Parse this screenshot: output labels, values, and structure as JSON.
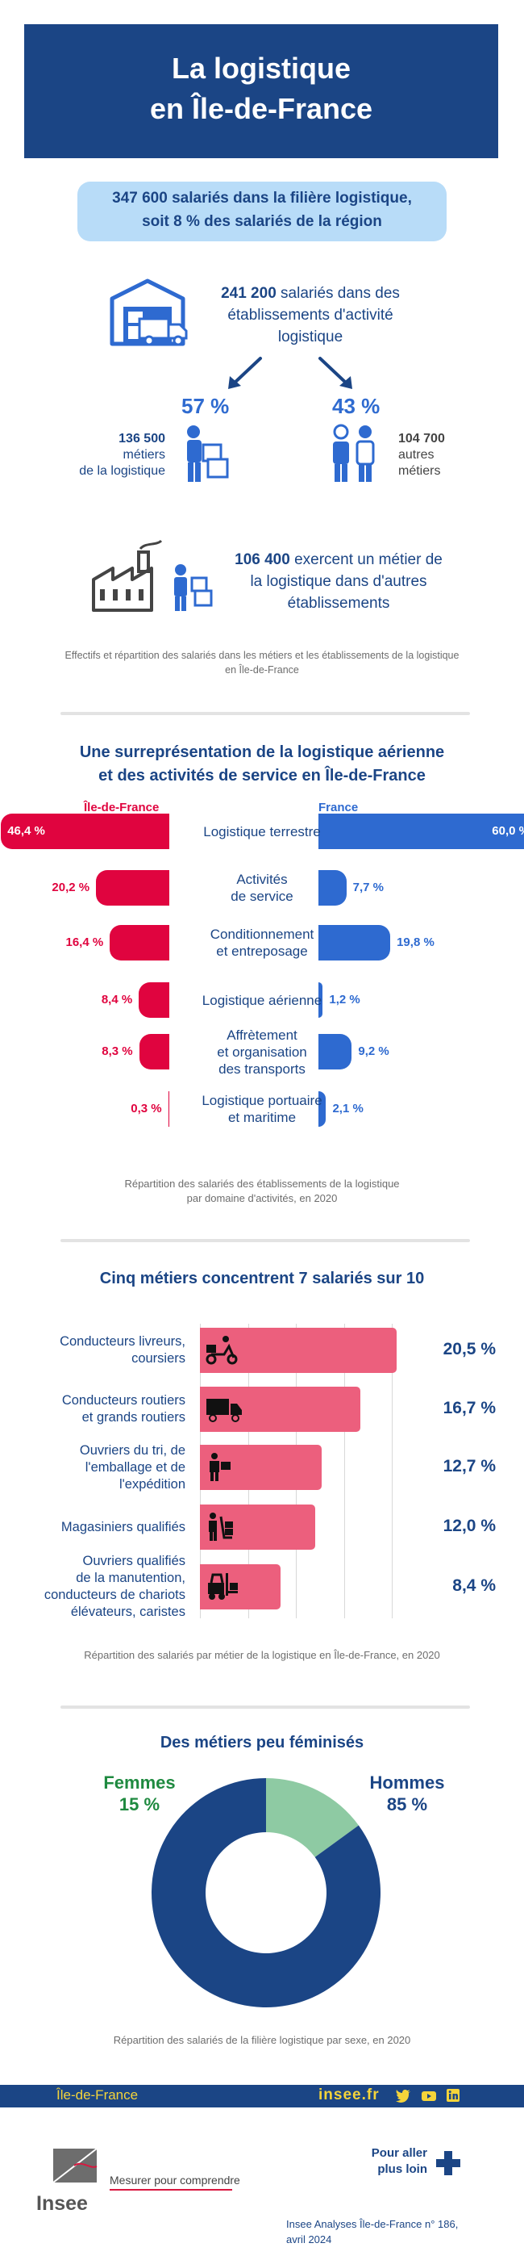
{
  "colors": {
    "navy": "#1b4585",
    "blue": "#2e6ad0",
    "red": "#e0043f",
    "pink": "#ec5f7d",
    "green": "#8ecaa3",
    "green_text": "#1f8a40",
    "light_blue": "#b8dcf8",
    "yellow": "#f5d43a"
  },
  "header": {
    "line1": "La logistique",
    "line2": "en Île-de-France"
  },
  "summary": {
    "line1": "347 600 salariés dans la filière logistique,",
    "line2": "soit 8 % des salariés de la région"
  },
  "establishments": {
    "value": "241 200",
    "text1": "salariés dans des",
    "text2": "établissements d'activité",
    "text3": "logistique",
    "icon": "warehouse-truck-icon"
  },
  "split": {
    "left": {
      "pct": "57 %",
      "value": "136 500",
      "line1": "métiers",
      "line2": "de la logistique",
      "icon": "worker-boxes-icon"
    },
    "right": {
      "pct": "43 %",
      "value": "104 700",
      "line1": "autres",
      "line2": "métiers",
      "icon": "other-workers-icon"
    }
  },
  "other_establishments": {
    "value": "106 400",
    "text1": "exercent un métier de",
    "text2": "la logistique dans d'autres",
    "text3": "établissements",
    "icon": "factory-worker-icon"
  },
  "caption1": {
    "line1": "Effectifs et répartition des salariés dans les métiers et les établissements de la logistique",
    "line2": "en Île-de-France"
  },
  "section2": {
    "title1": "Une surreprésentation de la logistique aérienne",
    "title2": "et des activités de service en Île-de-France",
    "left_head": "Île-de-France",
    "right_head": "France",
    "rows": [
      {
        "cat1": "Logistique terrestre",
        "cat2": "",
        "cat3": "",
        "idf": 46.4,
        "idf_label": "46,4 %",
        "fr": 60.0,
        "fr_label": "60,0 %"
      },
      {
        "cat1": "Activités",
        "cat2": "de service",
        "cat3": "",
        "idf": 20.2,
        "idf_label": "20,2 %",
        "fr": 7.7,
        "fr_label": "7,7 %"
      },
      {
        "cat1": "Conditionnement",
        "cat2": "et entreposage",
        "cat3": "",
        "idf": 16.4,
        "idf_label": "16,4 %",
        "fr": 19.8,
        "fr_label": "19,8 %"
      },
      {
        "cat1": "Logistique aérienne",
        "cat2": "",
        "cat3": "",
        "idf": 8.4,
        "idf_label": "8,4 %",
        "fr": 1.2,
        "fr_label": "1,2 %"
      },
      {
        "cat1": "Affrètement",
        "cat2": "et organisation",
        "cat3": "des transports",
        "idf": 8.3,
        "idf_label": "8,3 %",
        "fr": 9.2,
        "fr_label": "9,2 %"
      },
      {
        "cat1": "Logistique portuaire",
        "cat2": "et maritime",
        "cat3": "",
        "idf": 0.3,
        "idf_label": "0,3 %",
        "fr": 2.1,
        "fr_label": "2,1 %"
      }
    ],
    "caption1": "Répartition des salariés des établissements de la logistique",
    "caption2": "par domaine d'activités, en 2020"
  },
  "section3": {
    "title": "Cinq métiers concentrent 7 salariés sur 10",
    "rows": [
      {
        "l1": "Conducteurs livreurs,",
        "l2": "coursiers",
        "l3": "",
        "l4": "",
        "value": 20.5,
        "label": "20,5 %",
        "icon": "delivery-scooter-icon"
      },
      {
        "l1": "Conducteurs routiers",
        "l2": "et grands routiers",
        "l3": "",
        "l4": "",
        "value": 16.7,
        "label": "16,7 %",
        "icon": "truck-icon"
      },
      {
        "l1": "Ouvriers du tri, de",
        "l2": "l'emballage et de",
        "l3": "l'expédition",
        "l4": "",
        "value": 12.7,
        "label": "12,7 %",
        "icon": "worker-box-icon"
      },
      {
        "l1": "Magasiniers qualifiés",
        "l2": "",
        "l3": "",
        "l4": "",
        "value": 12.0,
        "label": "12,0 %",
        "icon": "hand-truck-icon"
      },
      {
        "l1": "Ouvriers qualifiés",
        "l2": "de la manutention,",
        "l3": "conducteurs de chariots",
        "l4": "élévateurs, caristes",
        "value": 8.4,
        "label": "8,4 %",
        "icon": "forklift-icon"
      }
    ],
    "caption": "Répartition des salariés par métier de la logistique en Île-de-France, en 2020"
  },
  "section4": {
    "title": "Des métiers peu féminisés",
    "women_label": "Femmes",
    "women_pct_label": "15 %",
    "men_label": "Hommes",
    "men_pct_label": "85 %",
    "caption": "Répartition des salariés de la filière logistique par sexe, en 2020"
  },
  "chart_data": [
    {
      "type": "bar",
      "title": "Une surreprésentation de la logistique aérienne et des activités de service en Île-de-France",
      "categories": [
        "Logistique terrestre",
        "Activités de service",
        "Conditionnement et entreposage",
        "Logistique aérienne",
        "Affrètement et organisation des transports",
        "Logistique portuaire et maritime"
      ],
      "series": [
        {
          "name": "Île-de-France",
          "values": [
            46.4,
            20.2,
            16.4,
            8.4,
            8.3,
            0.3
          ]
        },
        {
          "name": "France",
          "values": [
            60.0,
            7.7,
            19.8,
            1.2,
            9.2,
            2.1
          ]
        }
      ],
      "ylabel": "%"
    },
    {
      "type": "bar",
      "title": "Cinq métiers concentrent 7 salariés sur 10",
      "categories": [
        "Conducteurs livreurs, coursiers",
        "Conducteurs routiers et grands routiers",
        "Ouvriers du tri, de l'emballage et de l'expédition",
        "Magasiniers qualifiés",
        "Ouvriers qualifiés de la manutention, conducteurs de chariots élévateurs, caristes"
      ],
      "values": [
        20.5,
        16.7,
        12.7,
        12.0,
        8.4
      ],
      "ylabel": "%"
    },
    {
      "type": "pie",
      "title": "Des métiers peu féminisés",
      "categories": [
        "Femmes",
        "Hommes"
      ],
      "values": [
        15,
        85
      ]
    }
  ],
  "footer": {
    "region": "Île-de-France",
    "site": "insee.fr",
    "more1": "Pour aller",
    "more2": "plus loin",
    "tagline": "Mesurer pour comprendre",
    "logo_text": "Insee",
    "ref1": "Insee Analyses Île-de-France n° 186,",
    "ref2": "avril 2024"
  }
}
